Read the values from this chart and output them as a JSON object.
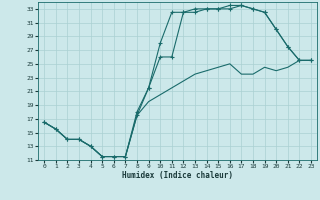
{
  "xlabel": "Humidex (Indice chaleur)",
  "xlim": [
    -0.5,
    23.5
  ],
  "ylim": [
    11,
    34
  ],
  "xticks": [
    0,
    1,
    2,
    3,
    4,
    5,
    6,
    7,
    8,
    9,
    10,
    11,
    12,
    13,
    14,
    15,
    16,
    17,
    18,
    19,
    20,
    21,
    22,
    23
  ],
  "yticks": [
    11,
    13,
    15,
    17,
    19,
    21,
    23,
    25,
    27,
    29,
    31,
    33
  ],
  "bg_color": "#cce8ea",
  "line_color": "#1a6b6b",
  "grid_color": "#aad0d3",
  "line1_x": [
    0,
    1,
    2,
    3,
    4,
    5,
    6,
    7,
    8,
    9,
    10,
    11,
    12,
    13,
    14,
    15,
    16,
    17,
    18,
    19,
    20,
    21,
    22,
    23
  ],
  "line1_y": [
    16.5,
    15.5,
    14.0,
    14.0,
    13.0,
    11.5,
    11.5,
    11.5,
    17.5,
    21.5,
    28.0,
    32.5,
    32.5,
    33.0,
    33.0,
    33.0,
    33.5,
    33.5,
    33.0,
    32.5,
    30.0,
    27.5,
    25.5,
    25.5
  ],
  "line2_x": [
    0,
    1,
    2,
    3,
    4,
    5,
    6,
    7,
    8,
    9,
    10,
    11,
    12,
    13,
    14,
    15,
    16,
    17,
    18,
    19,
    20,
    21,
    22,
    23
  ],
  "line2_y": [
    16.5,
    15.5,
    14.0,
    14.0,
    13.0,
    11.5,
    11.5,
    11.5,
    18.0,
    21.5,
    26.0,
    26.0,
    32.5,
    32.5,
    33.0,
    33.0,
    33.0,
    33.5,
    33.0,
    32.5,
    30.0,
    27.5,
    25.5,
    25.5
  ],
  "line3_x": [
    0,
    1,
    2,
    3,
    4,
    5,
    6,
    7,
    8,
    9,
    10,
    11,
    12,
    13,
    14,
    15,
    16,
    17,
    18,
    19,
    20,
    21,
    22,
    23
  ],
  "line3_y": [
    16.5,
    15.5,
    14.0,
    14.0,
    13.0,
    11.5,
    11.5,
    11.5,
    17.5,
    19.5,
    20.5,
    21.5,
    22.5,
    23.5,
    24.0,
    24.5,
    25.0,
    23.5,
    23.5,
    24.5,
    24.0,
    24.5,
    25.5,
    25.5
  ]
}
